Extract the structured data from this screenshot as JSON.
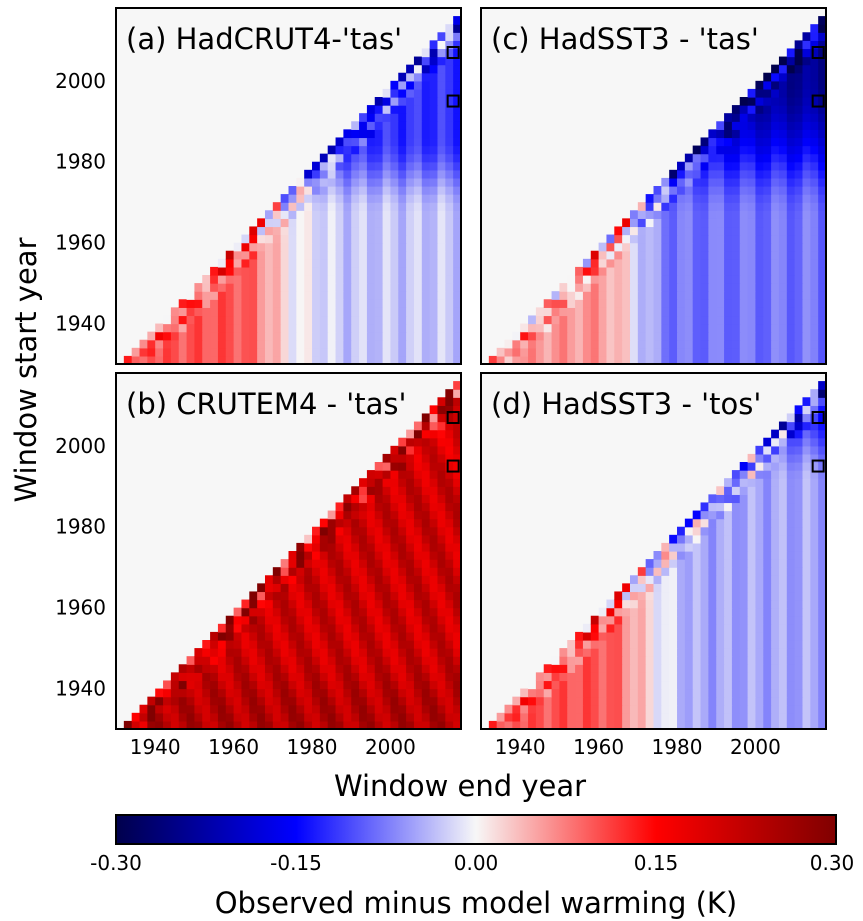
{
  "chart_data": {
    "type": "heatmap",
    "xlabel": "Window end year",
    "ylabel": "Window start year",
    "x_ticks": [
      "1940",
      "1960",
      "1980",
      "2000"
    ],
    "y_ticks": [
      "1940",
      "1960",
      "1980",
      "2000"
    ],
    "xlim": [
      1930,
      2018
    ],
    "ylim": [
      1930,
      2018
    ],
    "colorbar": {
      "label": "Observed minus model warming (K)",
      "ticks": [
        "-0.30",
        "-0.15",
        "0.00",
        "0.15",
        "0.30"
      ],
      "range": [
        -0.3,
        0.3
      ],
      "colormap": "seismic",
      "colors": {
        "low": "#00004c",
        "mid": "#f7f7f7",
        "high": "#800000"
      }
    },
    "markers": [
      {
        "start_year": 2007,
        "end_year": 2016
      },
      {
        "start_year": 1995,
        "end_year": 2016
      }
    ],
    "panels": [
      {
        "id": "a",
        "title": "(a) HadCRUT4-'tas'",
        "pattern": "hadcrut4_tas",
        "summary": {
          "early_short_windows": 0.1,
          "recent_start_windows": -0.12,
          "long_windows": -0.03
        }
      },
      {
        "id": "b",
        "title": "(b) CRUTEM4 - 'tas'",
        "pattern": "crutem4_tas",
        "summary": {
          "early_short_windows": 0.25,
          "recent_start_windows": 0.2,
          "long_windows": 0.21
        }
      },
      {
        "id": "c",
        "title": "(c) HadSST3 - 'tas'",
        "pattern": "hadsst3_tas",
        "summary": {
          "early_short_windows": 0.05,
          "recent_start_windows": -0.25,
          "long_windows": -0.1
        }
      },
      {
        "id": "d",
        "title": "(d) HadSST3 - 'tos'",
        "pattern": "hadsst3_tos",
        "summary": {
          "early_short_windows": 0.1,
          "recent_start_windows": -0.14,
          "long_windows": -0.04
        }
      }
    ]
  }
}
